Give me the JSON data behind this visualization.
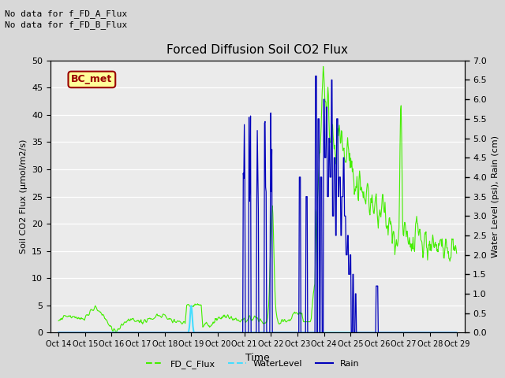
{
  "title": "Forced Diffusion Soil CO2 Flux",
  "xlabel": "Time",
  "ylabel_left": "Soil CO2 Flux (μmol/m2/s)",
  "ylabel_right": "Water Level (psi), Rain (cm)",
  "no_data_text": [
    "No data for f_FD_A_Flux",
    "No data for f_FD_B_Flux"
  ],
  "bc_met_label": "BC_met",
  "bc_met_color": "#990000",
  "bc_met_bg": "#ffff99",
  "ylim_left": [
    0,
    50
  ],
  "ylim_right": [
    0,
    7.0
  ],
  "yticks_left": [
    0,
    5,
    10,
    15,
    20,
    25,
    30,
    35,
    40,
    45,
    50
  ],
  "yticks_right": [
    0.0,
    0.5,
    1.0,
    1.5,
    2.0,
    2.5,
    3.0,
    3.5,
    4.0,
    4.5,
    5.0,
    5.5,
    6.0,
    6.5,
    7.0
  ],
  "xtick_labels": [
    "Oct 14",
    "Oct 15",
    "Oct 16",
    "Oct 17",
    "Oct 18",
    "Oct 19",
    "Oct 20",
    "Oct 21",
    "Oct 22",
    "Oct 23",
    "Oct 24",
    "Oct 25",
    "Oct 26",
    "Oct 27",
    "Oct 28",
    "Oct 29"
  ],
  "fd_c_flux_color": "#44ee00",
  "water_level_color": "#44ddff",
  "rain_color": "#0000bb",
  "bg_color": "#d8d8d8",
  "plot_bg_color": "#ebebeb",
  "legend_entries": [
    "FD_C_Flux",
    "WaterLevel",
    "Rain"
  ],
  "legend_colors": [
    "#44ee00",
    "#44ddff",
    "#0000bb"
  ]
}
